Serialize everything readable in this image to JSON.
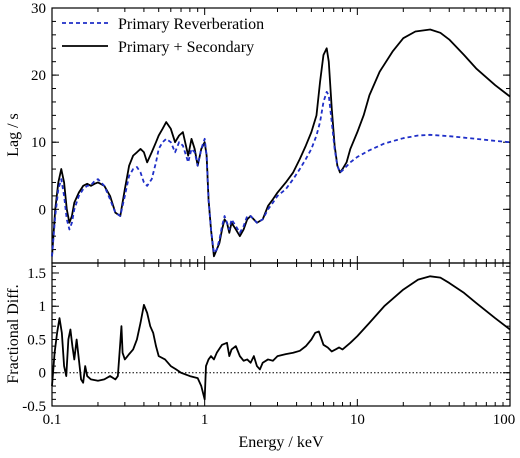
{
  "chart_data": [
    {
      "panel": "top",
      "type": "line",
      "xlabel": "",
      "ylabel": "Lag / s",
      "xscale": "log",
      "xlim": [
        0.1,
        100
      ],
      "ylim": [
        -8,
        30
      ],
      "yticks": [
        0,
        10,
        20,
        30
      ],
      "legend_placement": "top-left",
      "series": [
        {
          "name": "Primary Reverberation",
          "style": "dashed",
          "color": "#1f2fc8",
          "points": [
            [
              0.1,
              -7
            ],
            [
              0.105,
              -1
            ],
            [
              0.11,
              3
            ],
            [
              0.115,
              4.5
            ],
            [
              0.12,
              2
            ],
            [
              0.125,
              -1.5
            ],
            [
              0.13,
              -3
            ],
            [
              0.135,
              -2
            ],
            [
              0.14,
              0
            ],
            [
              0.15,
              2
            ],
            [
              0.16,
              3
            ],
            [
              0.17,
              3.5
            ],
            [
              0.18,
              3.6
            ],
            [
              0.19,
              4.2
            ],
            [
              0.2,
              4.5
            ],
            [
              0.22,
              3.5
            ],
            [
              0.24,
              1.5
            ],
            [
              0.26,
              -0.5
            ],
            [
              0.28,
              -1
            ],
            [
              0.3,
              2
            ],
            [
              0.32,
              5
            ],
            [
              0.34,
              6
            ],
            [
              0.36,
              6.3
            ],
            [
              0.38,
              5.5
            ],
            [
              0.4,
              4
            ],
            [
              0.42,
              3.5
            ],
            [
              0.45,
              4.5
            ],
            [
              0.48,
              7
            ],
            [
              0.5,
              9
            ],
            [
              0.53,
              10
            ],
            [
              0.56,
              10.5
            ],
            [
              0.6,
              10
            ],
            [
              0.64,
              8.5
            ],
            [
              0.68,
              10
            ],
            [
              0.72,
              9.5
            ],
            [
              0.78,
              7
            ],
            [
              0.82,
              9
            ],
            [
              0.86,
              8.5
            ],
            [
              0.9,
              6.5
            ],
            [
              0.95,
              9
            ],
            [
              1.0,
              10.5
            ],
            [
              1.03,
              8
            ],
            [
              1.06,
              1.5
            ],
            [
              1.1,
              -3
            ],
            [
              1.15,
              -6.5
            ],
            [
              1.2,
              -6
            ],
            [
              1.25,
              -4.5
            ],
            [
              1.3,
              -2.5
            ],
            [
              1.35,
              -1
            ],
            [
              1.4,
              -2
            ],
            [
              1.45,
              -3
            ],
            [
              1.5,
              -1.5
            ],
            [
              1.6,
              -2.5
            ],
            [
              1.7,
              -3.5
            ],
            [
              1.8,
              -2.5
            ],
            [
              1.9,
              -1
            ],
            [
              2.0,
              -1
            ],
            [
              2.2,
              -2
            ],
            [
              2.4,
              -1.5
            ],
            [
              2.6,
              0
            ],
            [
              2.8,
              1
            ],
            [
              3.0,
              2
            ],
            [
              3.4,
              3
            ],
            [
              3.8,
              4.5
            ],
            [
              4.2,
              6
            ],
            [
              4.6,
              7.5
            ],
            [
              5.0,
              9
            ],
            [
              5.4,
              11
            ],
            [
              5.7,
              13
            ],
            [
              6.0,
              16
            ],
            [
              6.3,
              17.5
            ],
            [
              6.5,
              17
            ],
            [
              6.8,
              13
            ],
            [
              7.1,
              9
            ],
            [
              7.4,
              6.5
            ],
            [
              7.7,
              5.5
            ],
            [
              8.0,
              5.8
            ],
            [
              9.0,
              7
            ],
            [
              10,
              7.8
            ],
            [
              12,
              8.8
            ],
            [
              15,
              9.8
            ],
            [
              20,
              10.6
            ],
            [
              25,
              11
            ],
            [
              30,
              11.1
            ],
            [
              40,
              10.9
            ],
            [
              60,
              10.5
            ],
            [
              80,
              10.2
            ],
            [
              100,
              10
            ]
          ]
        },
        {
          "name": "Primary + Secondary",
          "style": "solid",
          "color": "#000000",
          "points": [
            [
              0.1,
              -7
            ],
            [
              0.105,
              0
            ],
            [
              0.11,
              4
            ],
            [
              0.115,
              6
            ],
            [
              0.12,
              4
            ],
            [
              0.125,
              0
            ],
            [
              0.13,
              -2
            ],
            [
              0.135,
              -1
            ],
            [
              0.14,
              1
            ],
            [
              0.15,
              2.5
            ],
            [
              0.16,
              3.5
            ],
            [
              0.17,
              3.8
            ],
            [
              0.18,
              3.5
            ],
            [
              0.19,
              3.8
            ],
            [
              0.2,
              4
            ],
            [
              0.22,
              3.5
            ],
            [
              0.24,
              2
            ],
            [
              0.26,
              -0.5
            ],
            [
              0.28,
              -1
            ],
            [
              0.3,
              3
            ],
            [
              0.32,
              6.5
            ],
            [
              0.34,
              8
            ],
            [
              0.36,
              8.5
            ],
            [
              0.38,
              9
            ],
            [
              0.4,
              8.5
            ],
            [
              0.42,
              7
            ],
            [
              0.45,
              8.5
            ],
            [
              0.48,
              10
            ],
            [
              0.5,
              11
            ],
            [
              0.53,
              12
            ],
            [
              0.56,
              13
            ],
            [
              0.6,
              12
            ],
            [
              0.64,
              10
            ],
            [
              0.68,
              11
            ],
            [
              0.72,
              11.5
            ],
            [
              0.78,
              8
            ],
            [
              0.82,
              10.5
            ],
            [
              0.86,
              9
            ],
            [
              0.9,
              6.5
            ],
            [
              0.95,
              9
            ],
            [
              1.0,
              10
            ],
            [
              1.03,
              8
            ],
            [
              1.06,
              1.5
            ],
            [
              1.1,
              -3
            ],
            [
              1.15,
              -7
            ],
            [
              1.2,
              -6
            ],
            [
              1.25,
              -5
            ],
            [
              1.3,
              -3
            ],
            [
              1.35,
              -1.5
            ],
            [
              1.4,
              -2
            ],
            [
              1.45,
              -3.5
            ],
            [
              1.5,
              -2
            ],
            [
              1.6,
              -3
            ],
            [
              1.7,
              -4
            ],
            [
              1.8,
              -3
            ],
            [
              1.9,
              -1.5
            ],
            [
              2.0,
              -1
            ],
            [
              2.2,
              -2
            ],
            [
              2.4,
              -1.5
            ],
            [
              2.6,
              0.5
            ],
            [
              2.8,
              1.5
            ],
            [
              3.0,
              2.5
            ],
            [
              3.4,
              4
            ],
            [
              3.8,
              5.5
            ],
            [
              4.2,
              7.5
            ],
            [
              4.6,
              9.5
            ],
            [
              5.0,
              11.5
            ],
            [
              5.4,
              14
            ],
            [
              5.7,
              19
            ],
            [
              6.0,
              23
            ],
            [
              6.3,
              24
            ],
            [
              6.5,
              22
            ],
            [
              6.8,
              15
            ],
            [
              7.1,
              9.5
            ],
            [
              7.4,
              6.5
            ],
            [
              7.7,
              5.5
            ],
            [
              8.0,
              6
            ],
            [
              8.5,
              7
            ],
            [
              9.0,
              9
            ],
            [
              10,
              11.5
            ],
            [
              11,
              14
            ],
            [
              12,
              17
            ],
            [
              14,
              20.5
            ],
            [
              17,
              23.5
            ],
            [
              20,
              25.5
            ],
            [
              24,
              26.5
            ],
            [
              30,
              26.8
            ],
            [
              35,
              26.3
            ],
            [
              40,
              25.3
            ],
            [
              50,
              23
            ],
            [
              60,
              21
            ],
            [
              80,
              18.5
            ],
            [
              100,
              16.8
            ]
          ]
        }
      ]
    },
    {
      "panel": "bottom",
      "type": "line",
      "xlabel": "Energy  / keV",
      "ylabel": "Fractional Diff.",
      "xscale": "log",
      "xlim": [
        0.1,
        100
      ],
      "xticks": [
        0.1,
        1,
        10,
        100
      ],
      "xtick_labels": [
        "0.1",
        "1",
        "10",
        "100"
      ],
      "ylim": [
        -0.5,
        1.65
      ],
      "yticks": [
        -0.5,
        0,
        0.5,
        1,
        1.5
      ],
      "ytick_labels": [
        "-0.5",
        "0",
        "0.5",
        "1",
        "1.5"
      ],
      "reference_line": {
        "y": 0,
        "style": "dotted"
      },
      "series": [
        {
          "style": "solid",
          "color": "#000000",
          "points": [
            [
              0.1,
              -0.2
            ],
            [
              0.104,
              0.3
            ],
            [
              0.108,
              0.6
            ],
            [
              0.112,
              0.82
            ],
            [
              0.116,
              0.6
            ],
            [
              0.12,
              0.1
            ],
            [
              0.124,
              -0.05
            ],
            [
              0.128,
              0.5
            ],
            [
              0.132,
              0.65
            ],
            [
              0.136,
              0.4
            ],
            [
              0.14,
              0.2
            ],
            [
              0.145,
              0.5
            ],
            [
              0.15,
              0.2
            ],
            [
              0.155,
              -0.1
            ],
            [
              0.16,
              -0.15
            ],
            [
              0.165,
              0.1
            ],
            [
              0.17,
              -0.05
            ],
            [
              0.18,
              -0.1
            ],
            [
              0.2,
              -0.12
            ],
            [
              0.22,
              -0.1
            ],
            [
              0.24,
              -0.05
            ],
            [
              0.26,
              -0.1
            ],
            [
              0.27,
              -0.05
            ],
            [
              0.28,
              0.45
            ],
            [
              0.285,
              0.7
            ],
            [
              0.29,
              0.3
            ],
            [
              0.3,
              0.2
            ],
            [
              0.32,
              0.28
            ],
            [
              0.34,
              0.35
            ],
            [
              0.36,
              0.5
            ],
            [
              0.38,
              0.75
            ],
            [
              0.4,
              1.02
            ],
            [
              0.42,
              0.9
            ],
            [
              0.44,
              0.7
            ],
            [
              0.46,
              0.6
            ],
            [
              0.48,
              0.4
            ],
            [
              0.5,
              0.25
            ],
            [
              0.55,
              0.2
            ],
            [
              0.6,
              0.1
            ],
            [
              0.65,
              0.05
            ],
            [
              0.7,
              0
            ],
            [
              0.8,
              -0.05
            ],
            [
              0.9,
              -0.08
            ],
            [
              0.95,
              -0.2
            ],
            [
              1.0,
              -0.4
            ],
            [
              1.02,
              0.1
            ],
            [
              1.06,
              0.2
            ],
            [
              1.1,
              0.25
            ],
            [
              1.15,
              0.2
            ],
            [
              1.2,
              0.3
            ],
            [
              1.3,
              0.42
            ],
            [
              1.4,
              0.45
            ],
            [
              1.45,
              0.25
            ],
            [
              1.5,
              0.35
            ],
            [
              1.6,
              0.4
            ],
            [
              1.7,
              0.25
            ],
            [
              1.8,
              0.18
            ],
            [
              1.9,
              0.2
            ],
            [
              2.0,
              0.15
            ],
            [
              2.1,
              0.25
            ],
            [
              2.2,
              0.1
            ],
            [
              2.3,
              0.05
            ],
            [
              2.4,
              0.15
            ],
            [
              2.6,
              0.2
            ],
            [
              2.8,
              0.18
            ],
            [
              3.0,
              0.25
            ],
            [
              3.4,
              0.28
            ],
            [
              3.8,
              0.3
            ],
            [
              4.2,
              0.33
            ],
            [
              4.6,
              0.4
            ],
            [
              5.0,
              0.5
            ],
            [
              5.3,
              0.6
            ],
            [
              5.6,
              0.62
            ],
            [
              6.0,
              0.42
            ],
            [
              6.4,
              0.38
            ],
            [
              6.8,
              0.32
            ],
            [
              7.2,
              0.35
            ],
            [
              7.6,
              0.38
            ],
            [
              8.0,
              0.35
            ],
            [
              9,
              0.45
            ],
            [
              10,
              0.55
            ],
            [
              12,
              0.75
            ],
            [
              15,
              1.0
            ],
            [
              20,
              1.25
            ],
            [
              25,
              1.4
            ],
            [
              30,
              1.45
            ],
            [
              35,
              1.43
            ],
            [
              40,
              1.35
            ],
            [
              50,
              1.2
            ],
            [
              60,
              1.05
            ],
            [
              80,
              0.82
            ],
            [
              100,
              0.65
            ]
          ]
        }
      ]
    }
  ]
}
